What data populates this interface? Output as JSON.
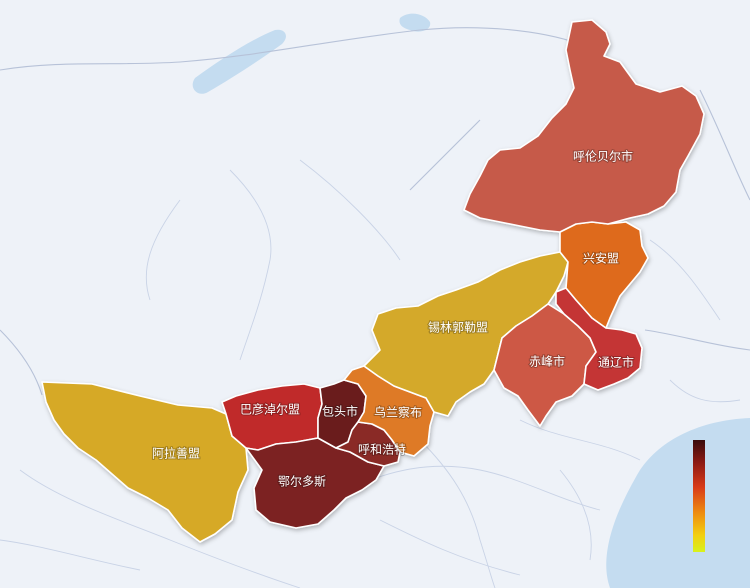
{
  "map": {
    "colors": {
      "background": "#eef2f8",
      "sea": "#c4dcf0",
      "region_border": "#ffffff"
    },
    "regions": [
      {
        "name": "呼伦贝尔市",
        "color": "#c65a4a"
      },
      {
        "name": "兴安盟",
        "color": "#de6b1a"
      },
      {
        "name": "锡林郭勒盟",
        "color": "#d4a92a"
      },
      {
        "name": "赤峰市",
        "color": "#cd5844"
      },
      {
        "name": "通辽市",
        "color": "#c43536"
      },
      {
        "name": "乌兰察布",
        "color": "#de7a26"
      },
      {
        "name": "包头市",
        "color": "#6a1c1c"
      },
      {
        "name": "呼和浩特",
        "color": "#8a2c28"
      },
      {
        "name": "巴彦淖尔盟",
        "color": "#c02c2a"
      },
      {
        "name": "鄂尔多斯",
        "color": "#7c2424"
      },
      {
        "name": "阿拉善盟",
        "color": "#d6a928"
      }
    ],
    "legend": {
      "gradient": [
        "#3a0b0b",
        "#8c1a14",
        "#d83a18",
        "#ee8c10",
        "#f2cf10",
        "#d8f21c"
      ]
    }
  }
}
